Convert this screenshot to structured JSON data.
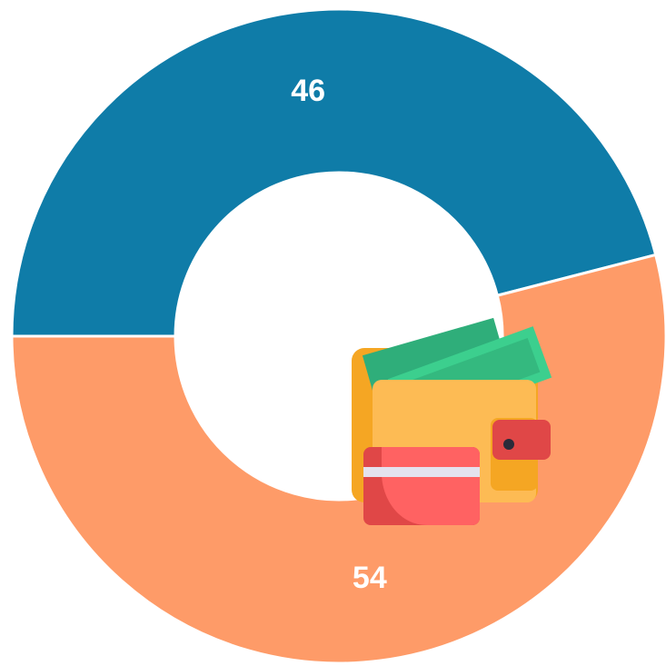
{
  "chart_data": {
    "type": "donut",
    "values": [
      46,
      54
    ],
    "colors": [
      "#0f7ca8",
      "#fe9b68"
    ],
    "start_angle": 270,
    "direction": "clockwise"
  }
}
